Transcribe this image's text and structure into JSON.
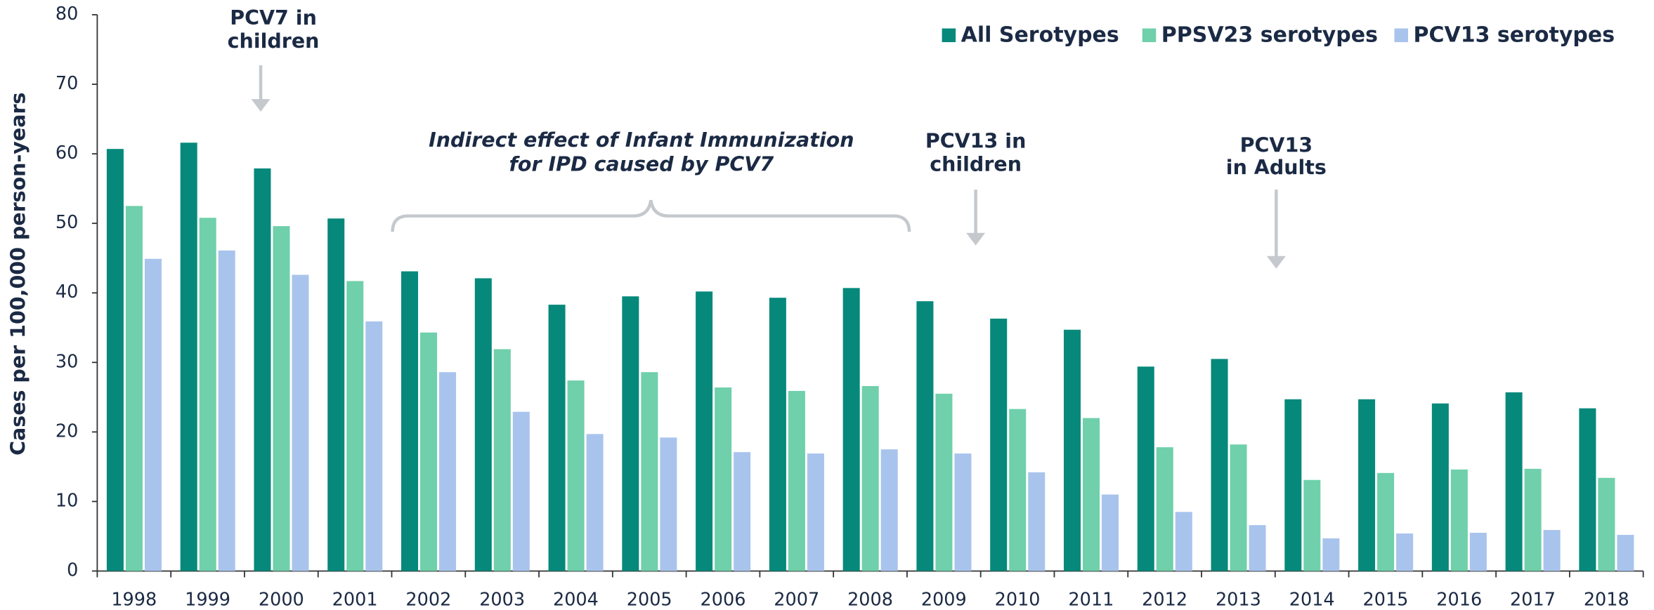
{
  "chart_data": {
    "type": "bar",
    "y_label": "Cases per 100,000  person-years",
    "categories": [
      "1998",
      "1999",
      "2000",
      "2001",
      "2002",
      "2003",
      "2004",
      "2005",
      "2006",
      "2007",
      "2008",
      "2009",
      "2010",
      "2011",
      "2012",
      "2013",
      "2014",
      "2015",
      "2016",
      "2017",
      "2018"
    ],
    "series": [
      {
        "name": "All Serotypes",
        "color": "#06897b",
        "values": [
          60.7,
          61.6,
          57.9,
          50.7,
          43.1,
          42.1,
          38.3,
          39.5,
          40.2,
          39.3,
          40.7,
          38.8,
          36.3,
          34.7,
          29.4,
          30.5,
          24.7,
          24.7,
          24.1,
          25.7,
          23.4
        ]
      },
      {
        "name": "PPSV23 serotypes",
        "color": "#6fd0ab",
        "values": [
          52.5,
          50.8,
          49.6,
          41.7,
          34.3,
          31.9,
          27.4,
          28.6,
          26.4,
          25.9,
          26.6,
          25.5,
          23.3,
          22.0,
          17.8,
          18.2,
          13.1,
          14.1,
          14.6,
          14.7,
          13.4
        ]
      },
      {
        "name": "PCV13 serotypes",
        "color": "#a9c4ec",
        "values": [
          44.9,
          46.1,
          42.6,
          35.9,
          28.6,
          22.9,
          19.7,
          19.2,
          17.1,
          16.9,
          17.5,
          16.9,
          14.2,
          11.0,
          8.5,
          6.6,
          4.7,
          5.4,
          5.5,
          5.9,
          5.2
        ]
      }
    ],
    "ylim": [
      0,
      80
    ],
    "yticks": [
      0,
      10,
      20,
      30,
      40,
      50,
      60,
      70,
      80
    ],
    "grid": false,
    "legend": "top-right",
    "annotations": [
      {
        "text": [
          "PCV7 in",
          "children"
        ]
      },
      {
        "text": [
          "Indirect effect of Infant Immunization",
          "for IPD caused by PCV7"
        ]
      },
      {
        "text": [
          "PCV13 in",
          "children"
        ]
      },
      {
        "text": [
          "PCV13",
          "in Adults"
        ]
      }
    ]
  }
}
